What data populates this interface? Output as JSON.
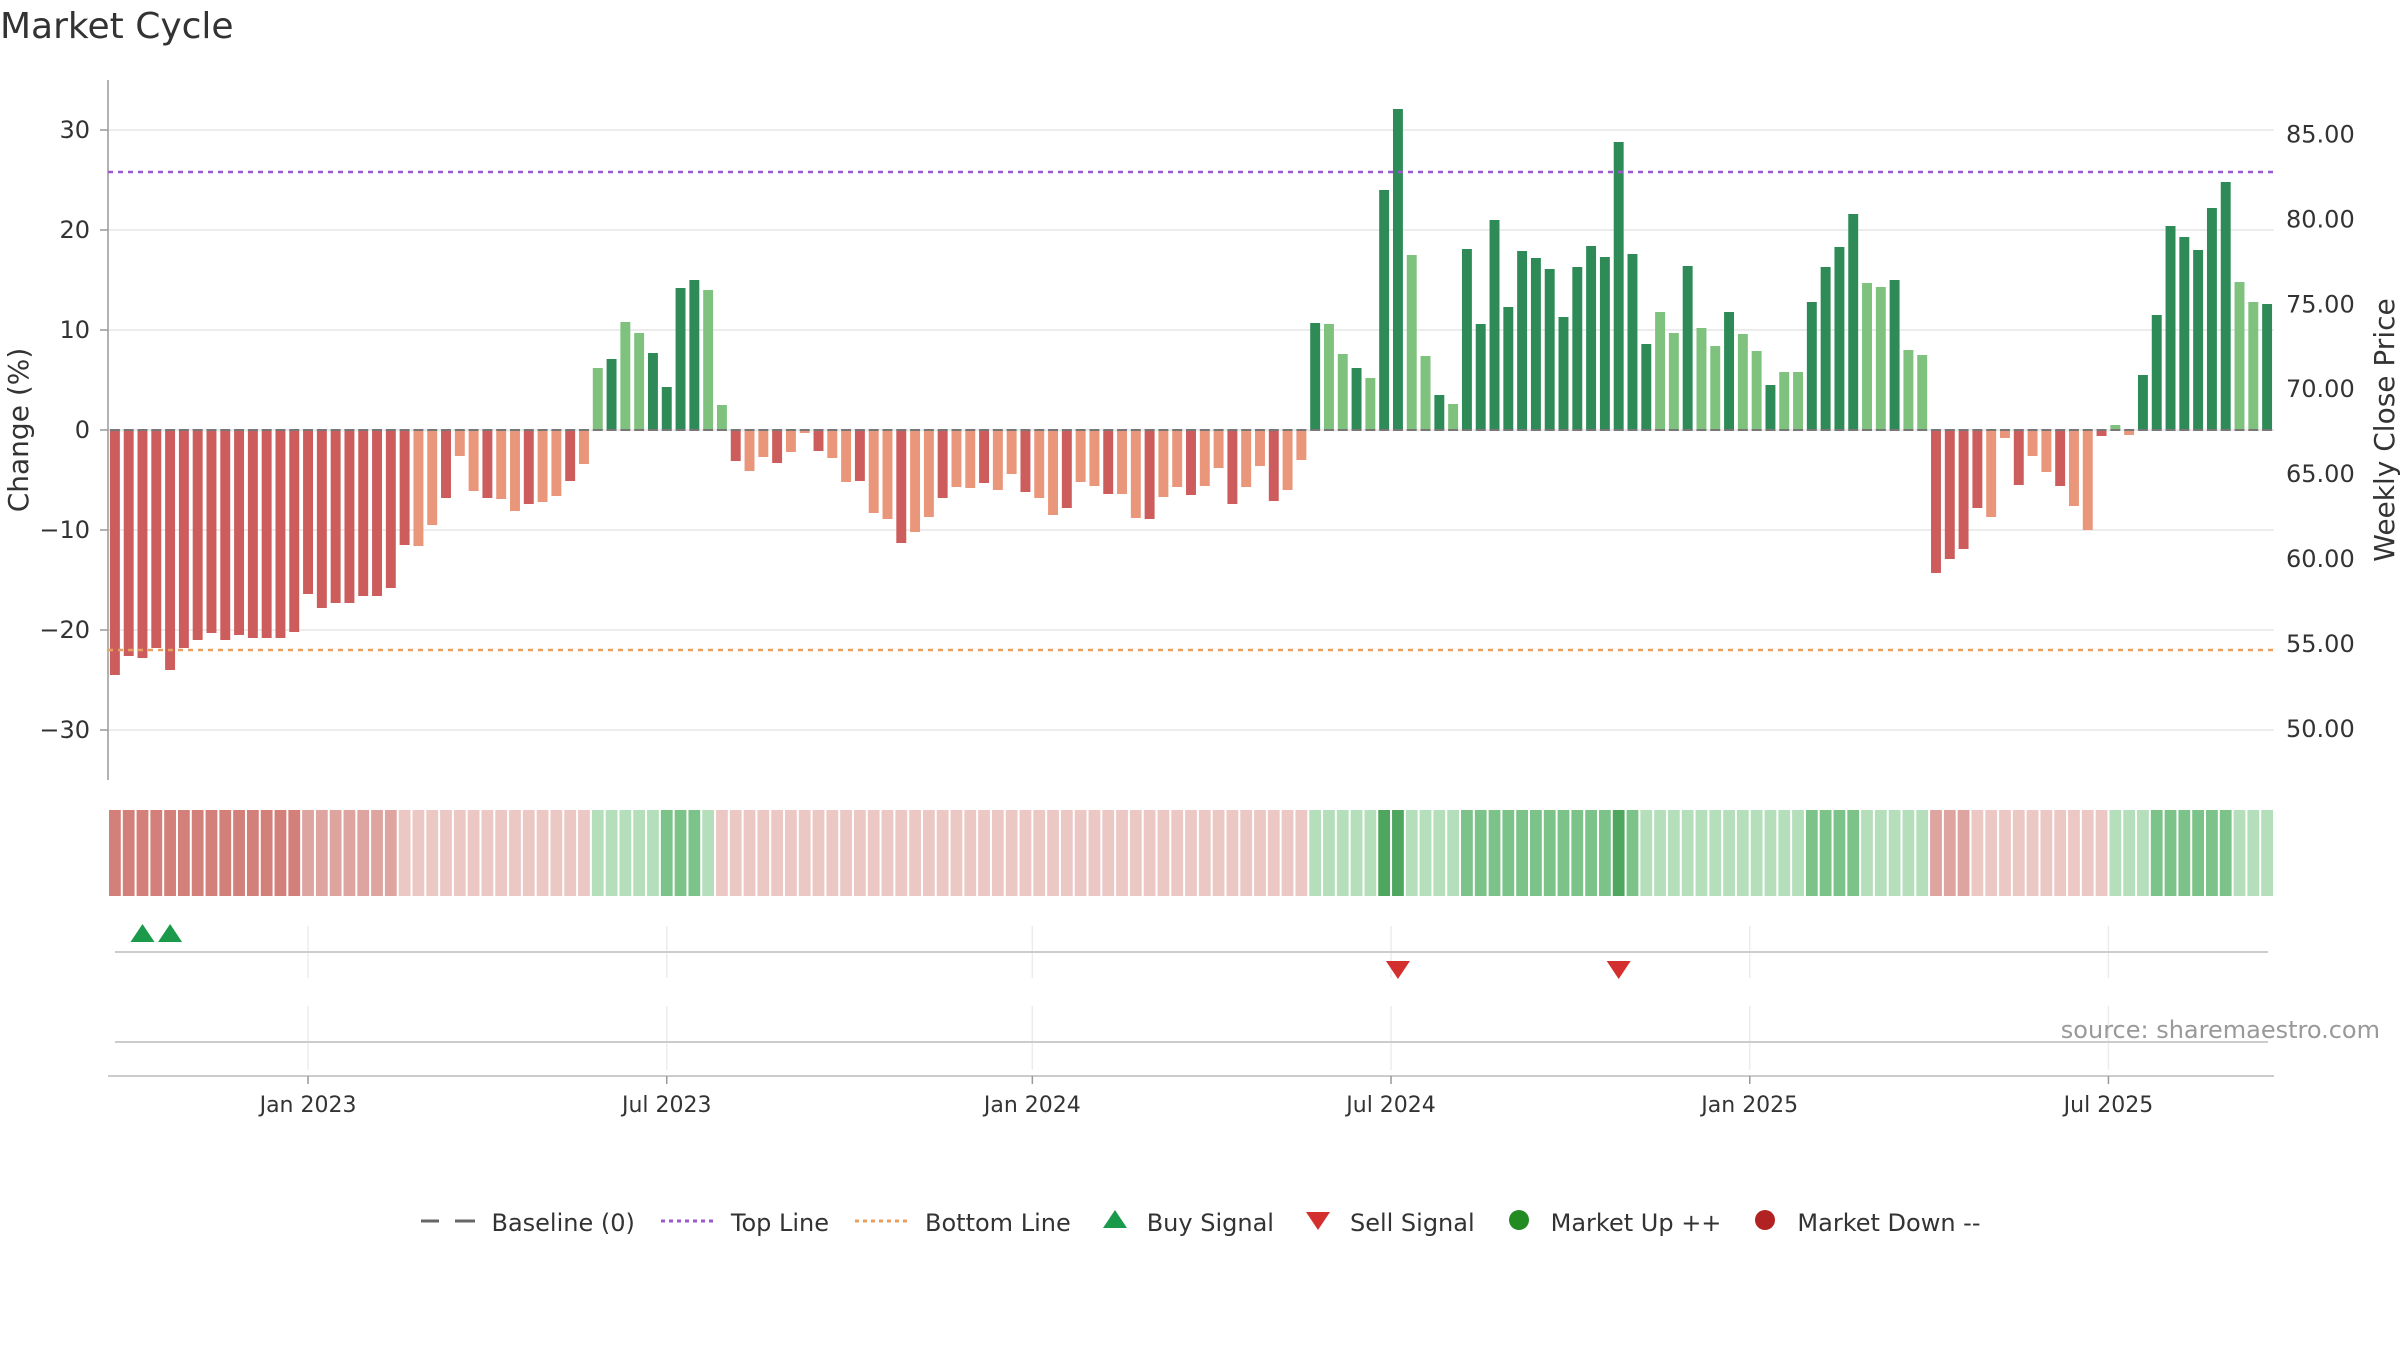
{
  "title": "Market Cycle",
  "source": "source: sharemaestro.com",
  "colors": {
    "up_strong": "#2e8b57",
    "up_light": "#7ec27e",
    "down_strong": "#cd5c5c",
    "down_light": "#e9967a",
    "top_line": "#9b59d0",
    "bottom_line": "#e8a060",
    "buy": "#1a9a4a",
    "sell": "#d32f2f",
    "market_up": "#228b22",
    "market_down": "#b22222"
  },
  "legend": [
    {
      "label": "Baseline (0)",
      "marker": "dash-gray"
    },
    {
      "label": "Top Line",
      "marker": "dot-purple"
    },
    {
      "label": "Bottom Line",
      "marker": "dot-orange"
    },
    {
      "label": "Buy Signal",
      "marker": "triangle-up-green"
    },
    {
      "label": "Sell Signal",
      "marker": "triangle-down-red"
    },
    {
      "label": "Market Up ++",
      "marker": "circle-green"
    },
    {
      "label": "Market Down --",
      "marker": "circle-red"
    }
  ],
  "chart_data": {
    "type": "bar",
    "ylabel": "Change (%)",
    "y2label": "Weekly Close Price",
    "ylim": [
      -35,
      35
    ],
    "y2lim": [
      47.0,
      88.2
    ],
    "yticks": [
      -30,
      -20,
      -10,
      0,
      10,
      20,
      30
    ],
    "yticklabels": [
      "−30",
      "−20",
      "−10",
      "0",
      "10",
      "20",
      "30"
    ],
    "y2ticks": [
      "50.00",
      "55.00",
      "60.00",
      "65.00",
      "70.00",
      "75.00",
      "80.00",
      "85.00"
    ],
    "xticklabels": [
      "Jan 2023",
      "Jul 2023",
      "Jan 2024",
      "Jul 2024",
      "Jan 2025",
      "Jul 2025"
    ],
    "xtick_index": [
      14,
      40,
      66.5,
      92.5,
      118.5,
      144.5
    ],
    "top_line": 25.8,
    "bottom_line": -22,
    "values": [
      -24.5,
      -22.6,
      -22.8,
      -21.8,
      -24,
      -21.8,
      -21,
      -20.3,
      -21,
      -20.5,
      -20.8,
      -20.8,
      -20.8,
      -20.2,
      -16.4,
      -17.8,
      -17.3,
      -17.3,
      -16.6,
      -16.6,
      -15.8,
      -11.5,
      -11.6,
      -9.5,
      -6.8,
      -2.6,
      -6.1,
      -6.8,
      -6.9,
      -8.1,
      -7.4,
      -7.2,
      -6.6,
      -5.1,
      -3.4,
      6.2,
      7.1,
      10.8,
      9.7,
      7.7,
      4.3,
      14.2,
      15,
      14,
      2.5,
      -3.1,
      -4.1,
      -2.7,
      -3.3,
      -2.2,
      -0.3,
      -2.1,
      -2.8,
      -5.2,
      -5.1,
      -8.3,
      -8.9,
      -11.3,
      -10.2,
      -8.7,
      -6.8,
      -5.7,
      -5.8,
      -5.3,
      -6,
      -4.4,
      -6.2,
      -6.8,
      -8.5,
      -7.8,
      -5.2,
      -5.6,
      -6.4,
      -6.4,
      -8.8,
      -8.9,
      -6.7,
      -5.7,
      -6.5,
      -5.6,
      -3.8,
      -7.4,
      -5.7,
      -3.6,
      -7.1,
      -6,
      -3,
      10.7,
      10.6,
      7.6,
      6.2,
      5.2,
      24,
      32.1,
      17.5,
      7.4,
      3.5,
      2.6,
      18.1,
      10.6,
      21,
      12.3,
      17.9,
      17.2,
      16.1,
      11.3,
      16.3,
      18.4,
      17.3,
      28.8,
      17.6,
      8.6,
      11.8,
      9.7,
      16.4,
      10.2,
      8.4,
      11.8,
      9.6,
      7.9,
      4.5,
      5.8,
      5.8,
      12.8,
      16.3,
      18.3,
      21.6,
      14.7,
      14.3,
      15,
      8,
      7.5,
      -14.3,
      -12.9,
      -11.9,
      -7.8,
      -8.7,
      -0.8,
      -5.5,
      -2.6,
      -4.2,
      -5.6,
      -7.6,
      -10,
      -0.6,
      0.5,
      -0.5,
      5.5,
      11.5,
      20.4,
      19.3,
      18,
      22.2,
      24.8,
      14.8,
      12.8,
      12.6
    ],
    "shade_levels": [
      -3,
      -3,
      -3,
      -3,
      -3,
      -3,
      -3,
      -3,
      -3,
      -3,
      -3,
      -3,
      -3,
      -3,
      -2,
      -2,
      -2,
      -2,
      -2,
      -2,
      -2,
      -1,
      -1,
      -1,
      -1,
      -1,
      -1,
      -1,
      -1,
      -1,
      -1,
      -1,
      -1,
      -1,
      -1,
      1,
      1,
      1,
      1,
      1,
      2,
      2,
      2,
      1,
      -1,
      -1,
      -1,
      -1,
      -1,
      -1,
      -1,
      -1,
      -1,
      -1,
      -1,
      -1,
      -1,
      -1,
      -1,
      -1,
      -1,
      -1,
      -1,
      -1,
      -1,
      -1,
      -1,
      -1,
      -1,
      -1,
      -1,
      -1,
      -1,
      -1,
      -1,
      -1,
      -1,
      -1,
      -1,
      -1,
      -1,
      -1,
      -1,
      -1,
      -1,
      -1,
      -1,
      1,
      1,
      1,
      1,
      1,
      3,
      3,
      1,
      1,
      1,
      1,
      2,
      2,
      2,
      2,
      2,
      2,
      2,
      2,
      2,
      2,
      2,
      3,
      2,
      1,
      1,
      1,
      1,
      1,
      1,
      1,
      1,
      1,
      1,
      1,
      1,
      2,
      2,
      2,
      2,
      1,
      1,
      1,
      1,
      1,
      -2,
      -2,
      -2,
      -1,
      -1,
      -1,
      -1,
      -1,
      -1,
      -1,
      -1,
      -1,
      -1,
      1,
      1,
      1,
      2,
      2,
      2,
      2,
      2,
      2,
      1,
      1,
      1
    ],
    "buy_signals": [
      2,
      4
    ],
    "sell_signals": [
      93,
      109
    ]
  }
}
